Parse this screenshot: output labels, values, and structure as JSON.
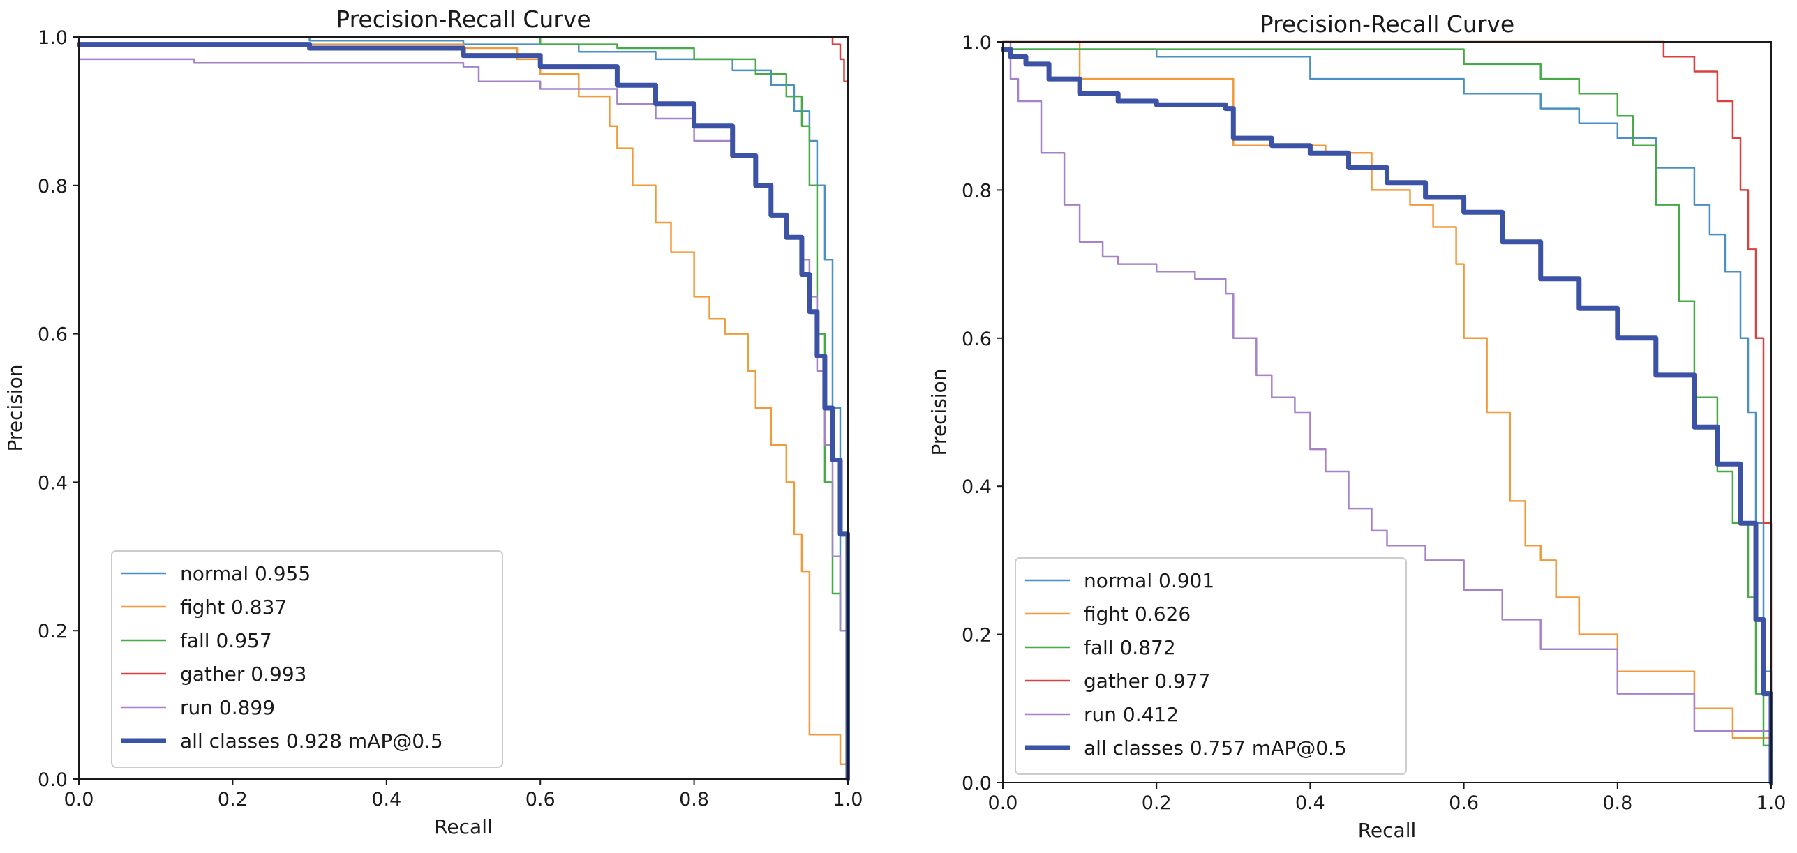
{
  "colors": {
    "normal": "#4a90c2",
    "fight": "#f29a3a",
    "fall": "#47aa47",
    "gather": "#d94040",
    "run": "#a683c9",
    "all": "#3b52a5"
  },
  "chart_data": [
    {
      "type": "line",
      "title": "Precision-Recall Curve",
      "xlabel": "Recall",
      "ylabel": "Precision",
      "xlim": [
        0,
        1
      ],
      "ylim": [
        0,
        1
      ],
      "xticks": [
        "0.0",
        "0.2",
        "0.4",
        "0.6",
        "0.8",
        "1.0"
      ],
      "yticks": [
        "0.0",
        "0.2",
        "0.4",
        "0.6",
        "0.8",
        "1.0"
      ],
      "legend_position": "lower-left",
      "series": [
        {
          "name": "normal",
          "value": "0.955",
          "label": "normal 0.955",
          "color_key": "normal",
          "x": [
            0,
            0.3,
            0.5,
            0.65,
            0.75,
            0.85,
            0.9,
            0.93,
            0.95,
            0.96,
            0.97,
            0.98,
            0.99,
            1.0
          ],
          "y": [
            1.0,
            0.995,
            0.99,
            0.98,
            0.97,
            0.955,
            0.935,
            0.9,
            0.86,
            0.8,
            0.7,
            0.5,
            0.2,
            0.0
          ]
        },
        {
          "name": "fight",
          "value": "0.837",
          "label": "fight 0.837",
          "color_key": "fight",
          "x": [
            0,
            0.5,
            0.57,
            0.6,
            0.65,
            0.69,
            0.7,
            0.72,
            0.75,
            0.77,
            0.8,
            0.82,
            0.84,
            0.87,
            0.88,
            0.9,
            0.92,
            0.93,
            0.94,
            0.95,
            0.99,
            1.0
          ],
          "y": [
            0.99,
            0.985,
            0.97,
            0.95,
            0.92,
            0.88,
            0.85,
            0.8,
            0.75,
            0.71,
            0.65,
            0.62,
            0.6,
            0.55,
            0.5,
            0.45,
            0.4,
            0.33,
            0.28,
            0.06,
            0.02,
            0.0
          ]
        },
        {
          "name": "fall",
          "value": "0.957",
          "label": "fall 0.957",
          "color_key": "fall",
          "x": [
            0,
            0.4,
            0.6,
            0.7,
            0.8,
            0.88,
            0.92,
            0.94,
            0.95,
            0.96,
            0.97,
            0.98,
            0.99,
            1.0
          ],
          "y": [
            1.0,
            1.0,
            0.99,
            0.985,
            0.97,
            0.95,
            0.92,
            0.88,
            0.8,
            0.6,
            0.4,
            0.25,
            0.2,
            0.0
          ]
        },
        {
          "name": "gather",
          "value": "0.993",
          "label": "gather 0.993",
          "color_key": "gather",
          "x": [
            0,
            0.8,
            0.95,
            0.98,
            0.99,
            0.995,
            1.0,
            1.0
          ],
          "y": [
            1.0,
            1.0,
            1.0,
            0.99,
            0.97,
            0.94,
            0.88,
            0.0
          ]
        },
        {
          "name": "run",
          "value": "0.899",
          "label": "run 0.899",
          "color_key": "run",
          "x": [
            0,
            0.15,
            0.5,
            0.52,
            0.6,
            0.7,
            0.75,
            0.8,
            0.85,
            0.88,
            0.9,
            0.92,
            0.94,
            0.95,
            0.96,
            0.97,
            0.98,
            0.99,
            1.0
          ],
          "y": [
            0.97,
            0.965,
            0.96,
            0.94,
            0.93,
            0.91,
            0.89,
            0.86,
            0.84,
            0.8,
            0.76,
            0.73,
            0.7,
            0.65,
            0.55,
            0.45,
            0.3,
            0.2,
            0.0
          ]
        },
        {
          "name": "all classes",
          "value": "0.928",
          "label": "all classes 0.928 mAP@0.5",
          "color_key": "all",
          "bold": true,
          "x": [
            0,
            0.3,
            0.5,
            0.6,
            0.7,
            0.75,
            0.8,
            0.85,
            0.88,
            0.9,
            0.92,
            0.94,
            0.95,
            0.96,
            0.97,
            0.98,
            0.99,
            1.0
          ],
          "y": [
            0.99,
            0.985,
            0.975,
            0.96,
            0.935,
            0.91,
            0.88,
            0.84,
            0.8,
            0.76,
            0.73,
            0.68,
            0.63,
            0.57,
            0.5,
            0.43,
            0.33,
            0.0
          ]
        }
      ]
    },
    {
      "type": "line",
      "title": "Precision-Recall Curve",
      "xlabel": "Recall",
      "ylabel": "Precision",
      "xlim": [
        0,
        1
      ],
      "ylim": [
        0,
        1
      ],
      "xticks": [
        "0.0",
        "0.2",
        "0.4",
        "0.6",
        "0.8",
        "1.0"
      ],
      "yticks": [
        "0.0",
        "0.2",
        "0.4",
        "0.6",
        "0.8",
        "1.0"
      ],
      "legend_position": "lower-left",
      "series": [
        {
          "name": "normal",
          "value": "0.901",
          "label": "normal 0.901",
          "color_key": "normal",
          "x": [
            0,
            0.2,
            0.4,
            0.6,
            0.7,
            0.75,
            0.8,
            0.85,
            0.9,
            0.92,
            0.94,
            0.96,
            0.97,
            0.98,
            0.99,
            1.0
          ],
          "y": [
            0.99,
            0.98,
            0.95,
            0.93,
            0.91,
            0.89,
            0.87,
            0.83,
            0.78,
            0.74,
            0.69,
            0.6,
            0.5,
            0.35,
            0.15,
            0.0
          ]
        },
        {
          "name": "fight",
          "value": "0.626",
          "label": "fight 0.626",
          "color_key": "fight",
          "x": [
            0,
            0.1,
            0.29,
            0.3,
            0.42,
            0.48,
            0.53,
            0.56,
            0.59,
            0.6,
            0.63,
            0.66,
            0.68,
            0.7,
            0.72,
            0.75,
            0.8,
            0.9,
            0.95,
            1.0
          ],
          "y": [
            1.0,
            0.95,
            0.95,
            0.86,
            0.85,
            0.8,
            0.78,
            0.75,
            0.7,
            0.6,
            0.5,
            0.38,
            0.32,
            0.3,
            0.25,
            0.2,
            0.15,
            0.1,
            0.06,
            0.0
          ]
        },
        {
          "name": "fall",
          "value": "0.872",
          "label": "fall 0.872",
          "color_key": "fall",
          "x": [
            0,
            0.3,
            0.55,
            0.6,
            0.7,
            0.75,
            0.8,
            0.82,
            0.85,
            0.88,
            0.9,
            0.93,
            0.95,
            0.97,
            0.98,
            0.99,
            1.0
          ],
          "y": [
            0.99,
            0.99,
            0.99,
            0.97,
            0.95,
            0.93,
            0.9,
            0.86,
            0.78,
            0.65,
            0.52,
            0.42,
            0.35,
            0.25,
            0.12,
            0.05,
            0.0
          ]
        },
        {
          "name": "gather",
          "value": "0.977",
          "label": "gather 0.977",
          "color_key": "gather",
          "x": [
            0,
            0.44,
            0.8,
            0.86,
            0.9,
            0.93,
            0.95,
            0.96,
            0.97,
            0.98,
            0.99,
            1.0
          ],
          "y": [
            1.0,
            1.0,
            1.0,
            0.98,
            0.96,
            0.92,
            0.87,
            0.8,
            0.72,
            0.6,
            0.35,
            0.0
          ]
        },
        {
          "name": "run",
          "value": "0.412",
          "label": "run 0.412",
          "color_key": "run",
          "x": [
            0,
            0.01,
            0.02,
            0.05,
            0.08,
            0.1,
            0.13,
            0.15,
            0.2,
            0.25,
            0.29,
            0.3,
            0.33,
            0.35,
            0.38,
            0.4,
            0.42,
            0.45,
            0.48,
            0.5,
            0.55,
            0.6,
            0.65,
            0.7,
            0.8,
            0.9,
            1.0
          ],
          "y": [
            1.0,
            0.95,
            0.92,
            0.85,
            0.78,
            0.73,
            0.71,
            0.7,
            0.69,
            0.68,
            0.66,
            0.6,
            0.55,
            0.52,
            0.5,
            0.45,
            0.42,
            0.37,
            0.34,
            0.32,
            0.3,
            0.26,
            0.22,
            0.18,
            0.12,
            0.07,
            0.0
          ]
        },
        {
          "name": "all classes",
          "value": "0.757",
          "label": "all classes 0.757 mAP@0.5",
          "color_key": "all",
          "bold": true,
          "x": [
            0,
            0.01,
            0.03,
            0.06,
            0.1,
            0.15,
            0.2,
            0.29,
            0.3,
            0.35,
            0.4,
            0.45,
            0.5,
            0.55,
            0.6,
            0.65,
            0.7,
            0.75,
            0.8,
            0.85,
            0.9,
            0.93,
            0.96,
            0.98,
            0.99,
            1.0
          ],
          "y": [
            0.99,
            0.98,
            0.97,
            0.95,
            0.93,
            0.92,
            0.915,
            0.91,
            0.87,
            0.86,
            0.85,
            0.83,
            0.81,
            0.79,
            0.77,
            0.73,
            0.68,
            0.64,
            0.6,
            0.55,
            0.48,
            0.43,
            0.35,
            0.22,
            0.12,
            0.0
          ]
        }
      ]
    }
  ]
}
